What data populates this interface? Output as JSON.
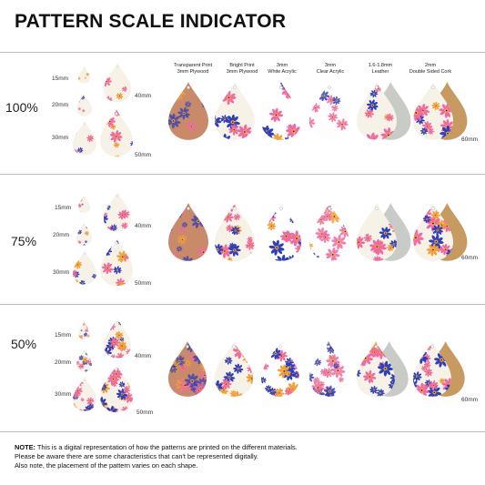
{
  "title": "PATTERN SCALE INDICATOR",
  "size_labels": {
    "small": "15mm",
    "mid": "20mm",
    "large": "30mm",
    "big40": "40mm",
    "big50": "50mm",
    "material": "60mm"
  },
  "materials": [
    {
      "line1": "Transparent Print",
      "line2": "3mm Plywood"
    },
    {
      "line1": "Bright Print",
      "line2": "3mm Plywood"
    },
    {
      "line1": "3mm",
      "line2": "White Acrylic"
    },
    {
      "line1": "3mm",
      "line2": "Clear Acrylic"
    },
    {
      "line1": "1.6-1.8mm",
      "line2": "Leather"
    },
    {
      "line1": "2mm",
      "line2": "Double Sided Cork"
    }
  ],
  "rows": [
    {
      "scale": "100%"
    },
    {
      "scale": "75%"
    },
    {
      "scale": "50%"
    }
  ],
  "note": {
    "prefix": "NOTE:",
    "line1": "This is a digital representation of how the patterns are printed on the different materials.",
    "line2": "Please be aware there are some characteristics that can't be represented digitally.",
    "line3": "Also note, the placement of the pattern varies on each shape."
  },
  "colors": {
    "pattern_blue": "#2e3fb8",
    "pattern_pink": "#f06aa0",
    "pattern_orange": "#f2a038",
    "pattern_light": "#f7f2e8",
    "leather": "#c9cbc6",
    "cork": "#c79a62",
    "plywood": "#c98a6a"
  }
}
